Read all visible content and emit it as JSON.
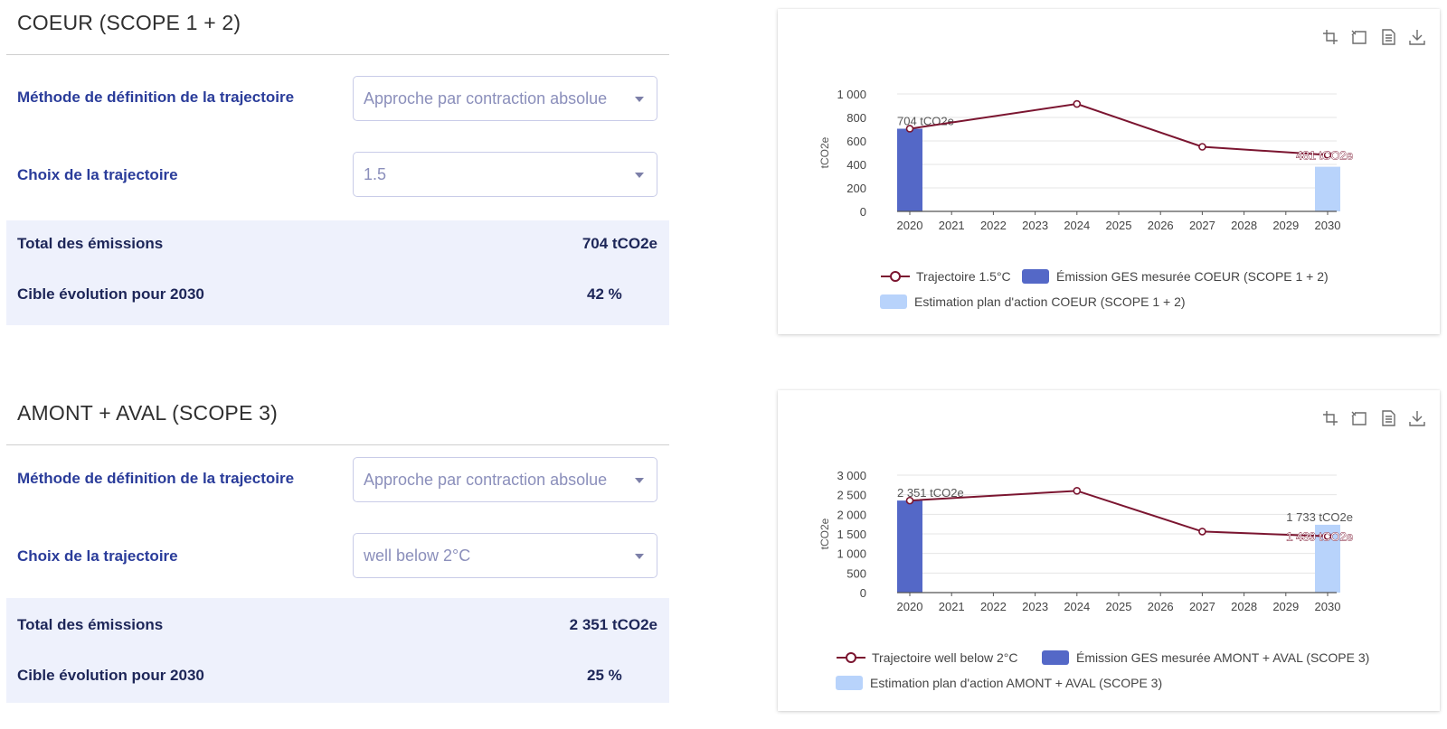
{
  "colors": {
    "measured_bar": "#5468c7",
    "estimate_bar": "#b8d3fb",
    "trajectory_line": "#7b1530",
    "axis": "#555555",
    "grid": "#e4e4e4"
  },
  "sections": [
    {
      "title": "COEUR (SCOPE 1 + 2)",
      "method_label": "Méthode de définition de la trajectoire",
      "method_value": "Approche par contraction absolue",
      "trajectory_label": "Choix de la trajectoire",
      "trajectory_value": "1.5",
      "total_label": "Total des émissions",
      "total_value": "704 tCO2e",
      "target_label": "Cible évolution pour 2030",
      "target_value": "42 %",
      "legend": {
        "trajectory": "Trajectoire 1.5°C",
        "measured": "Émission GES mesurée COEUR (SCOPE 1 + 2)",
        "estimate": "Estimation plan d'action COEUR (SCOPE 1 + 2)"
      }
    },
    {
      "title": "AMONT + AVAL (SCOPE 3)",
      "method_label": "Méthode de définition de la trajectoire",
      "method_value": "Approche par contraction absolue",
      "trajectory_label": "Choix de la trajectoire",
      "trajectory_value": "well below 2°C",
      "total_label": "Total des émissions",
      "total_value": "2 351 tCO2e",
      "target_label": "Cible évolution pour 2030",
      "target_value": "25 %",
      "legend": {
        "trajectory": "Trajectoire well below 2°C",
        "measured": "Émission GES mesurée AMONT + AVAL (SCOPE 3)",
        "estimate": "Estimation plan d'action AMONT + AVAL (SCOPE 3)"
      }
    }
  ],
  "chart_data": [
    {
      "type": "bar",
      "title": "",
      "xlabel": "",
      "ylabel": "tCO2e",
      "categories": [
        "2020",
        "2021",
        "2022",
        "2023",
        "2024",
        "2025",
        "2026",
        "2027",
        "2028",
        "2029",
        "2030"
      ],
      "ylim": [
        0,
        1000
      ],
      "yticks": [
        0,
        200,
        400,
        600,
        800,
        1000
      ],
      "ytick_labels": [
        "0",
        "200",
        "400",
        "600",
        "800",
        "1 000"
      ],
      "series": [
        {
          "name": "Émission GES mesurée COEUR (SCOPE 1 + 2)",
          "kind": "bar",
          "values": [
            704,
            null,
            null,
            null,
            null,
            null,
            null,
            null,
            null,
            null,
            null
          ],
          "labels": [
            "704 tCO2e",
            null,
            null,
            null,
            null,
            null,
            null,
            null,
            null,
            null,
            null
          ]
        },
        {
          "name": "Estimation plan d'action COEUR (SCOPE 1 + 2)",
          "kind": "bar",
          "values": [
            null,
            null,
            null,
            null,
            null,
            null,
            null,
            null,
            null,
            null,
            380
          ],
          "labels": [
            null,
            null,
            null,
            null,
            null,
            null,
            null,
            null,
            null,
            null,
            null
          ]
        },
        {
          "name": "Trajectoire 1.5°C",
          "kind": "line",
          "points": [
            [
              2020,
              704
            ],
            [
              2024,
              915
            ],
            [
              2027,
              550
            ],
            [
              2030,
              481
            ]
          ],
          "labels": [
            null,
            null,
            null,
            "481 tCO2e"
          ]
        }
      ]
    },
    {
      "type": "bar",
      "title": "",
      "xlabel": "",
      "ylabel": "tCO2e",
      "categories": [
        "2020",
        "2021",
        "2022",
        "2023",
        "2024",
        "2025",
        "2026",
        "2027",
        "2028",
        "2029",
        "2030"
      ],
      "ylim": [
        0,
        3000
      ],
      "yticks": [
        0,
        500,
        1000,
        1500,
        2000,
        2500,
        3000
      ],
      "ytick_labels": [
        "0",
        "500",
        "1 000",
        "1 500",
        "2 000",
        "2 500",
        "3 000"
      ],
      "series": [
        {
          "name": "Émission GES mesurée AMONT + AVAL (SCOPE 3)",
          "kind": "bar",
          "values": [
            2351,
            null,
            null,
            null,
            null,
            null,
            null,
            null,
            null,
            null,
            null
          ],
          "labels": [
            "2 351 tCO2e",
            null,
            null,
            null,
            null,
            null,
            null,
            null,
            null,
            null,
            null
          ]
        },
        {
          "name": "Estimation plan d'action AMONT + AVAL (SCOPE 3)",
          "kind": "bar",
          "values": [
            null,
            null,
            null,
            null,
            null,
            null,
            null,
            null,
            null,
            null,
            1733
          ],
          "labels": [
            null,
            null,
            null,
            null,
            null,
            null,
            null,
            null,
            null,
            null,
            "1 733 tCO2e"
          ]
        },
        {
          "name": "Trajectoire well below 2°C",
          "kind": "line",
          "points": [
            [
              2020,
              2351
            ],
            [
              2024,
              2600
            ],
            [
              2027,
              1560
            ],
            [
              2030,
              1439
            ]
          ],
          "labels": [
            null,
            null,
            null,
            "1 439 tCO2e"
          ]
        }
      ]
    }
  ]
}
